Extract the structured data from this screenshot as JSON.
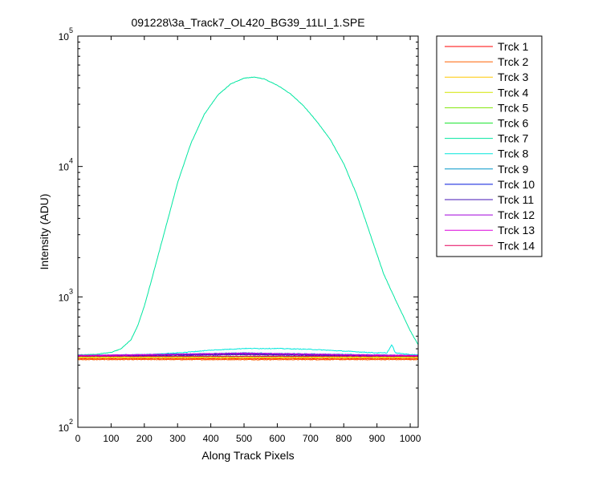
{
  "chart_data": {
    "type": "line",
    "title": "091228\\3a_Track7_OL420_BG39_11LI_1.SPE",
    "xlabel": "Along Track Pixels",
    "ylabel": "Intensity (ADU)",
    "xlim": [
      0,
      1024
    ],
    "ylim": [
      100,
      100000
    ],
    "yscale": "log",
    "xticks": [
      "0",
      "100",
      "200",
      "300",
      "400",
      "500",
      "600",
      "700",
      "800",
      "900",
      "1000"
    ],
    "yticks": [
      {
        "base": "10",
        "exp": "2"
      },
      {
        "base": "10",
        "exp": "3"
      },
      {
        "base": "10",
        "exp": "4"
      },
      {
        "base": "10",
        "exp": "5"
      }
    ],
    "grid": false,
    "legend_position": "outside-right-top",
    "series": [
      {
        "name": "Trck 1",
        "color": "#ff0000",
        "x": [
          0,
          1024
        ],
        "y": [
          335,
          335
        ]
      },
      {
        "name": "Trck 2",
        "color": "#ff6000",
        "x": [
          0,
          1024
        ],
        "y": [
          330,
          330
        ]
      },
      {
        "name": "Trck 3",
        "color": "#ffc800",
        "x": [
          0,
          1024
        ],
        "y": [
          340,
          340
        ]
      },
      {
        "name": "Trck 4",
        "color": "#d2e600",
        "x": [
          0,
          1024
        ],
        "y": [
          345,
          345
        ]
      },
      {
        "name": "Trck 5",
        "color": "#7ee600",
        "x": [
          0,
          1024
        ],
        "y": [
          350,
          350
        ]
      },
      {
        "name": "Trck 6",
        "color": "#1ee632",
        "x": [
          0,
          500,
          1024
        ],
        "y": [
          355,
          365,
          355
        ]
      },
      {
        "name": "Trck 7",
        "color": "#00e6a0",
        "x": [
          0,
          50,
          100,
          130,
          160,
          180,
          200,
          220,
          250,
          280,
          300,
          340,
          380,
          420,
          460,
          500,
          530,
          560,
          600,
          640,
          680,
          720,
          760,
          800,
          840,
          880,
          920,
          960,
          1000,
          1024
        ],
        "y": [
          360,
          362,
          375,
          400,
          470,
          600,
          850,
          1300,
          2500,
          4800,
          7500,
          15000,
          25000,
          35000,
          43000,
          47500,
          48500,
          47000,
          42000,
          36000,
          29000,
          22000,
          16000,
          10500,
          6000,
          3000,
          1500,
          900,
          550,
          430
        ]
      },
      {
        "name": "Trck 8",
        "color": "#00e6dc",
        "x": [
          0,
          100,
          200,
          300,
          400,
          500,
          600,
          700,
          800,
          900,
          930,
          945,
          955,
          1000,
          1024
        ],
        "y": [
          355,
          355,
          360,
          372,
          390,
          402,
          402,
          396,
          384,
          372,
          372,
          430,
          372,
          362,
          360
        ]
      },
      {
        "name": "Trck 9",
        "color": "#0096c8",
        "x": [
          0,
          500,
          1024
        ],
        "y": [
          355,
          372,
          355
        ]
      },
      {
        "name": "Trck 10",
        "color": "#0014dc",
        "x": [
          0,
          500,
          1024
        ],
        "y": [
          352,
          365,
          352
        ]
      },
      {
        "name": "Trck 11",
        "color": "#4614b4",
        "x": [
          0,
          500,
          1024
        ],
        "y": [
          350,
          360,
          350
        ]
      },
      {
        "name": "Trck 12",
        "color": "#a000dc",
        "x": [
          0,
          500,
          1024
        ],
        "y": [
          352,
          370,
          352
        ]
      },
      {
        "name": "Trck 13",
        "color": "#dc00dc",
        "x": [
          0,
          500,
          1024
        ],
        "y": [
          356,
          368,
          356
        ]
      },
      {
        "name": "Trck 14",
        "color": "#e6005a",
        "x": [
          0,
          1024
        ],
        "y": [
          350,
          350
        ]
      }
    ]
  }
}
